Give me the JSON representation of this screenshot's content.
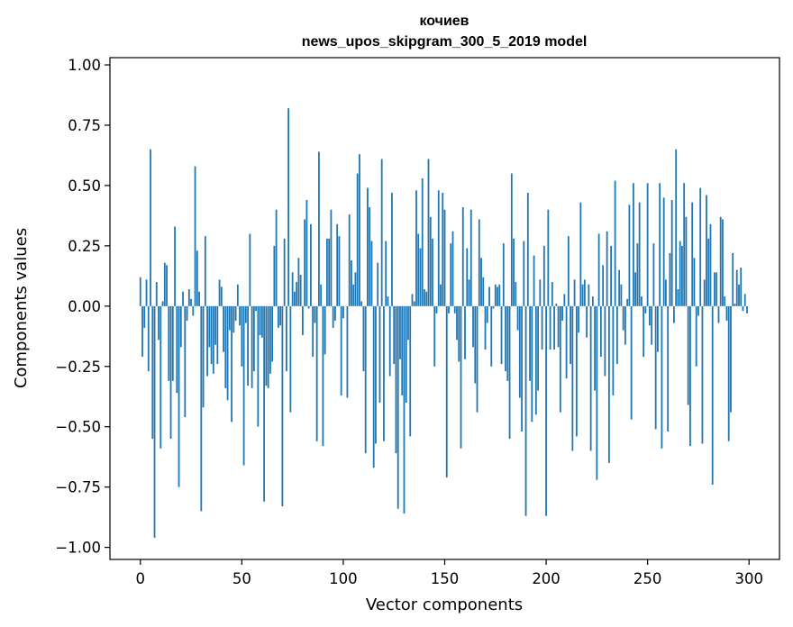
{
  "chart_data": {
    "type": "bar",
    "title": "кочиев",
    "subtitle": "news_upos_skipgram_300_5_2019 model",
    "xlabel": "Vector components",
    "ylabel": "Components values",
    "xlim": [
      -15,
      315
    ],
    "ylim": [
      -1.05,
      1.03
    ],
    "xticks": [
      0,
      50,
      100,
      150,
      200,
      250,
      300
    ],
    "xtick_labels": [
      "0",
      "50",
      "100",
      "150",
      "200",
      "250",
      "300"
    ],
    "yticks": [
      1.0,
      0.75,
      0.5,
      0.25,
      0.0,
      -0.25,
      -0.5,
      -0.75,
      -1.0
    ],
    "ytick_labels": [
      "1.00",
      "0.75",
      "0.50",
      "0.25",
      "0.00",
      "−0.25",
      "−0.50",
      "−0.75",
      "−1.00"
    ],
    "bar_color": "#1f77b4",
    "values": [
      0.12,
      -0.21,
      -0.09,
      0.11,
      -0.27,
      0.65,
      -0.55,
      -0.96,
      0.1,
      -0.14,
      -0.59,
      0.02,
      0.18,
      0.17,
      -0.31,
      -0.55,
      -0.31,
      0.33,
      -0.36,
      -0.75,
      -0.17,
      0.06,
      -0.46,
      -0.06,
      0.07,
      0.03,
      -0.04,
      0.58,
      0.23,
      0.06,
      -0.85,
      -0.42,
      0.29,
      -0.29,
      -0.17,
      -0.24,
      -0.28,
      -0.16,
      -0.24,
      0.11,
      0.08,
      -0.19,
      -0.34,
      -0.39,
      -0.1,
      -0.48,
      -0.11,
      -0.06,
      0.09,
      -0.08,
      -0.25,
      -0.66,
      -0.07,
      -0.33,
      0.3,
      -0.34,
      -0.27,
      -0.02,
      -0.5,
      -0.12,
      -0.13,
      -0.81,
      -0.33,
      -0.34,
      -0.28,
      -0.23,
      0.25,
      0.4,
      -0.09,
      -0.08,
      -0.83,
      0.28,
      -0.27,
      0.82,
      -0.44,
      0.14,
      0.06,
      0.1,
      0.2,
      0.13,
      -0.12,
      0.36,
      0.44,
      -0.01,
      0.34,
      -0.21,
      -0.07,
      -0.56,
      0.64,
      0.09,
      -0.58,
      -0.2,
      0.28,
      0.28,
      0.4,
      -0.09,
      -0.06,
      0.34,
      0.29,
      -0.37,
      -0.05,
      0.0,
      -0.38,
      0.38,
      0.19,
      0.09,
      0.14,
      0.55,
      0.63,
      0.02,
      -0.27,
      -0.61,
      0.49,
      0.41,
      0.27,
      -0.67,
      -0.57,
      0.18,
      -0.4,
      0.61,
      -0.56,
      0.27,
      0.04,
      -0.29,
      0.47,
      -0.24,
      -0.61,
      -0.84,
      -0.22,
      -0.37,
      -0.86,
      -0.4,
      -0.14,
      -0.54,
      0.05,
      0.02,
      0.48,
      0.3,
      0.24,
      0.53,
      0.07,
      0.06,
      0.61,
      0.37,
      0.28,
      -0.25,
      -0.03,
      0.48,
      0.09,
      0.47,
      0.4,
      -0.71,
      -0.03,
      0.26,
      0.31,
      -0.03,
      -0.14,
      -0.23,
      -0.59,
      0.41,
      -0.22,
      0.24,
      0.11,
      0.4,
      -0.17,
      -0.32,
      -0.44,
      0.36,
      0.2,
      0.12,
      -0.18,
      -0.07,
      0.08,
      -0.25,
      -0.01,
      0.09,
      0.08,
      0.09,
      -0.24,
      0.26,
      -0.27,
      -0.31,
      -0.55,
      0.55,
      0.28,
      0.1,
      -0.1,
      -0.38,
      -0.52,
      0.27,
      -0.87,
      0.47,
      -0.31,
      -0.48,
      0.21,
      -0.45,
      -0.35,
      0.11,
      -0.18,
      0.25,
      -0.87,
      0.4,
      -0.18,
      0.1,
      -0.18,
      0.01,
      -0.17,
      -0.44,
      -0.06,
      0.05,
      -0.3,
      0.29,
      -0.24,
      -0.6,
      0.11,
      -0.54,
      -0.11,
      0.43,
      0.09,
      0.11,
      -0.13,
      0.09,
      -0.6,
      0.04,
      -0.35,
      -0.72,
      0.3,
      -0.21,
      0.17,
      -0.29,
      0.31,
      -0.65,
      0.25,
      -0.37,
      0.52,
      -0.24,
      0.15,
      0.09,
      -0.1,
      -0.16,
      0.03,
      0.42,
      -0.47,
      0.51,
      0.14,
      0.26,
      0.43,
      0.04,
      -0.21,
      -0.03,
      0.51,
      -0.08,
      -0.16,
      0.26,
      -0.51,
      -0.19,
      0.51,
      -0.59,
      0.45,
      0.11,
      -0.52,
      0.22,
      0.44,
      -0.07,
      0.65,
      0.07,
      0.27,
      0.25,
      0.51,
      0.37,
      -0.41,
      -0.58,
      0.43,
      0.2,
      -0.25,
      -0.04,
      0.49,
      -0.57,
      0.11,
      0.46,
      0.28,
      0.34,
      -0.74,
      0.14,
      0.14,
      -0.07,
      0.37,
      0.36,
      0.04,
      -0.06,
      -0.56,
      -0.44,
      0.22,
      0.01,
      0.15,
      0.09,
      0.16,
      -0.02,
      0.05,
      -0.03
    ]
  }
}
